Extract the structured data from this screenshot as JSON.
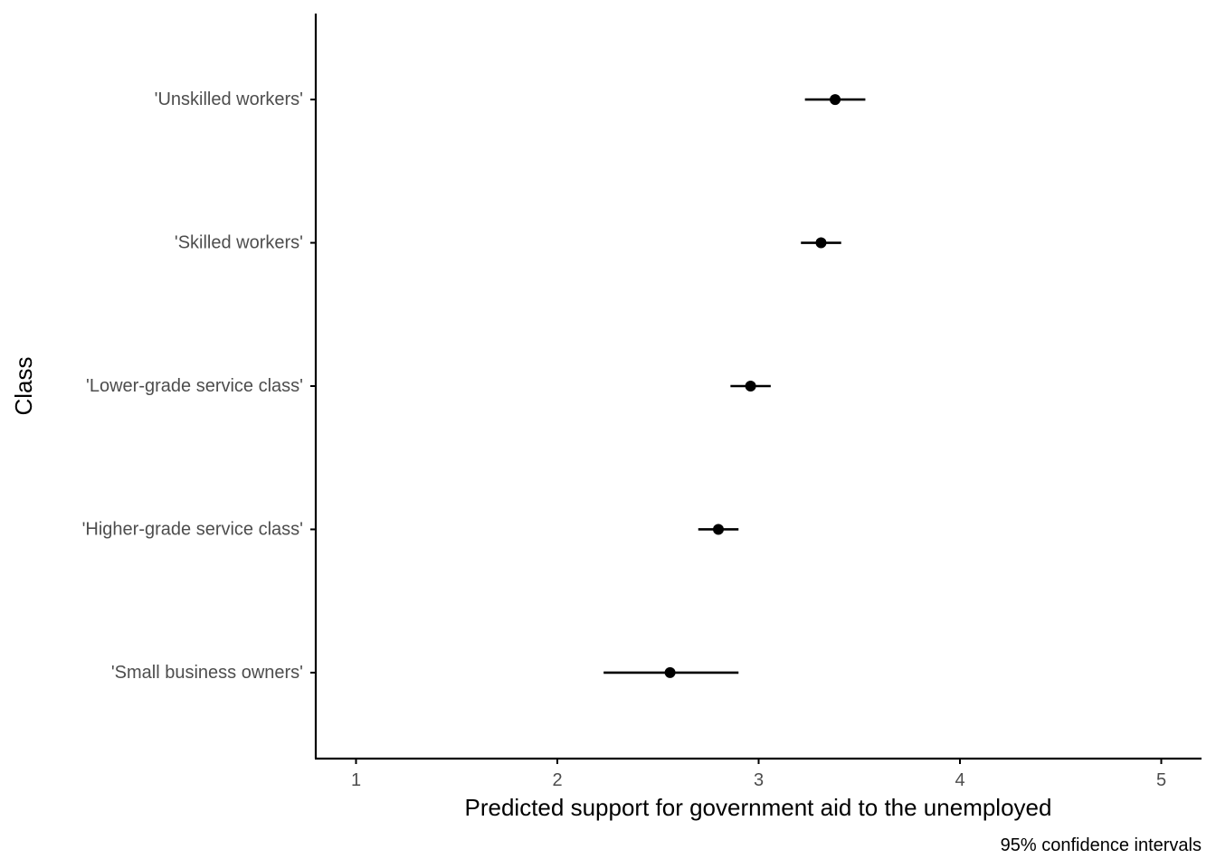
{
  "chart_data": {
    "type": "scatter",
    "subtype": "dot-and-whisker",
    "title": "",
    "xlabel": "Predicted support for government aid to the unemployed",
    "ylabel": "Class",
    "caption": "95% confidence intervals",
    "xlim": [
      0.8,
      5.2
    ],
    "xticks": [
      1,
      2,
      3,
      4,
      5
    ],
    "grid": false,
    "legend": "none",
    "categories": [
      "'Small business owners'",
      "'Higher-grade service class'",
      "'Lower-grade service class'",
      "'Skilled workers'",
      "'Unskilled workers'"
    ],
    "series": [
      {
        "estimate": [
          2.56,
          2.8,
          2.96,
          3.31,
          3.38
        ],
        "lower": [
          2.23,
          2.7,
          2.86,
          3.21,
          3.23
        ],
        "upper": [
          2.9,
          2.9,
          3.06,
          3.41,
          3.53
        ]
      }
    ],
    "colors": {
      "point": "#000000",
      "axis": "#000000",
      "tick_text": "#4d4d4d"
    }
  }
}
